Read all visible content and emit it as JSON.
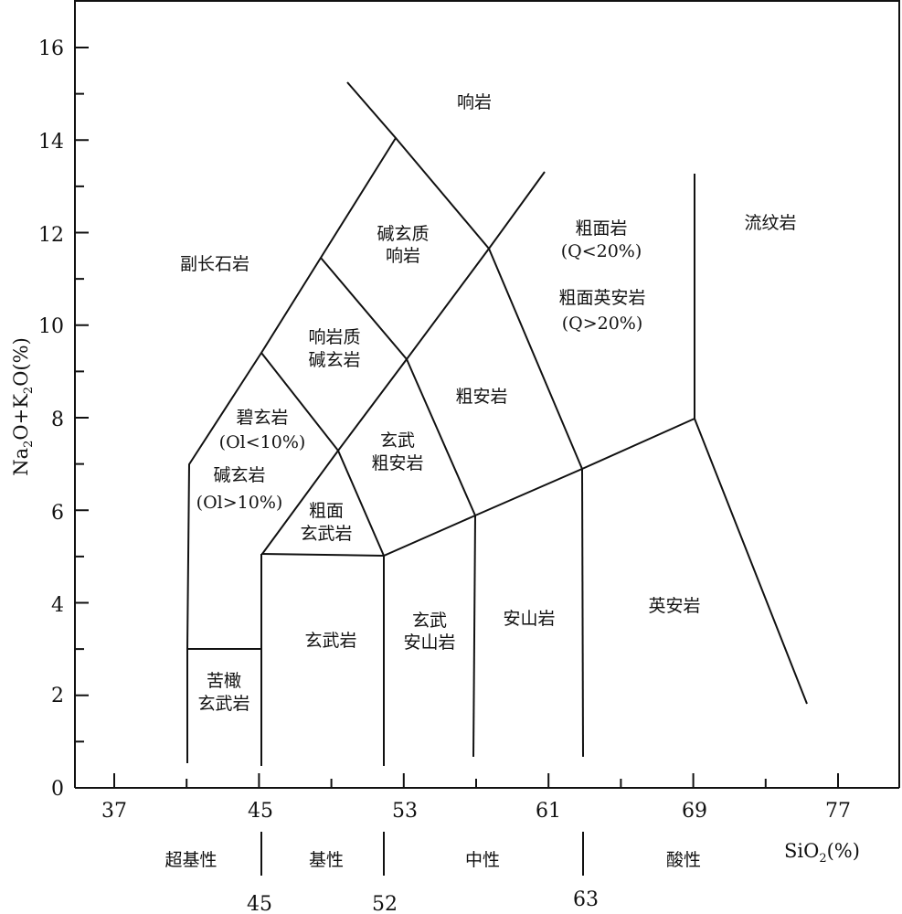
{
  "diagram": {
    "y_axis": {
      "label_parts": [
        "Na",
        "2",
        "O+K",
        "2",
        "O(%)"
      ],
      "ticks": [
        "0",
        "2",
        "4",
        "6",
        "8",
        "10",
        "12",
        "14",
        "16"
      ]
    },
    "x_axis": {
      "label_parts": [
        "SiO",
        "2",
        "(%)"
      ],
      "ticks": [
        "37",
        "45",
        "53",
        "61",
        "69",
        "77"
      ]
    },
    "fields": {
      "foidite": [
        "副长石岩"
      ],
      "phonolite": [
        "响岩"
      ],
      "tephriphonolite": [
        "碱玄质",
        "响岩"
      ],
      "phonotephrite": [
        "响岩质",
        "碱玄岩"
      ],
      "basanite": [
        "碧玄岩",
        "(Ol<10%)"
      ],
      "tephrite": [
        "碱玄岩",
        "(Ol>10%)"
      ],
      "trachybasalt": [
        "粗面",
        "玄武岩"
      ],
      "basaltic_trachyandesite": [
        "玄武",
        "粗安岩"
      ],
      "trachyandesite": [
        "粗安岩"
      ],
      "trachyte": [
        "粗面岩",
        "(Q<20%)"
      ],
      "trachydacite": [
        "粗面英安岩",
        "(Q>20%)"
      ],
      "rhyolite": [
        "流纹岩"
      ],
      "picrobasalt": [
        "苦橄",
        "玄武岩"
      ],
      "basalt": [
        "玄武岩"
      ],
      "basaltic_andesite": [
        "玄武",
        "安山岩"
      ],
      "andesite": [
        "安山岩"
      ],
      "dacite": [
        "英安岩"
      ]
    },
    "rock_classes": [
      {
        "name": "超基性"
      },
      {
        "name": "基性"
      },
      {
        "name": "中性"
      },
      {
        "name": "酸性"
      }
    ],
    "class_boundaries": [
      "45",
      "52",
      "63"
    ]
  }
}
